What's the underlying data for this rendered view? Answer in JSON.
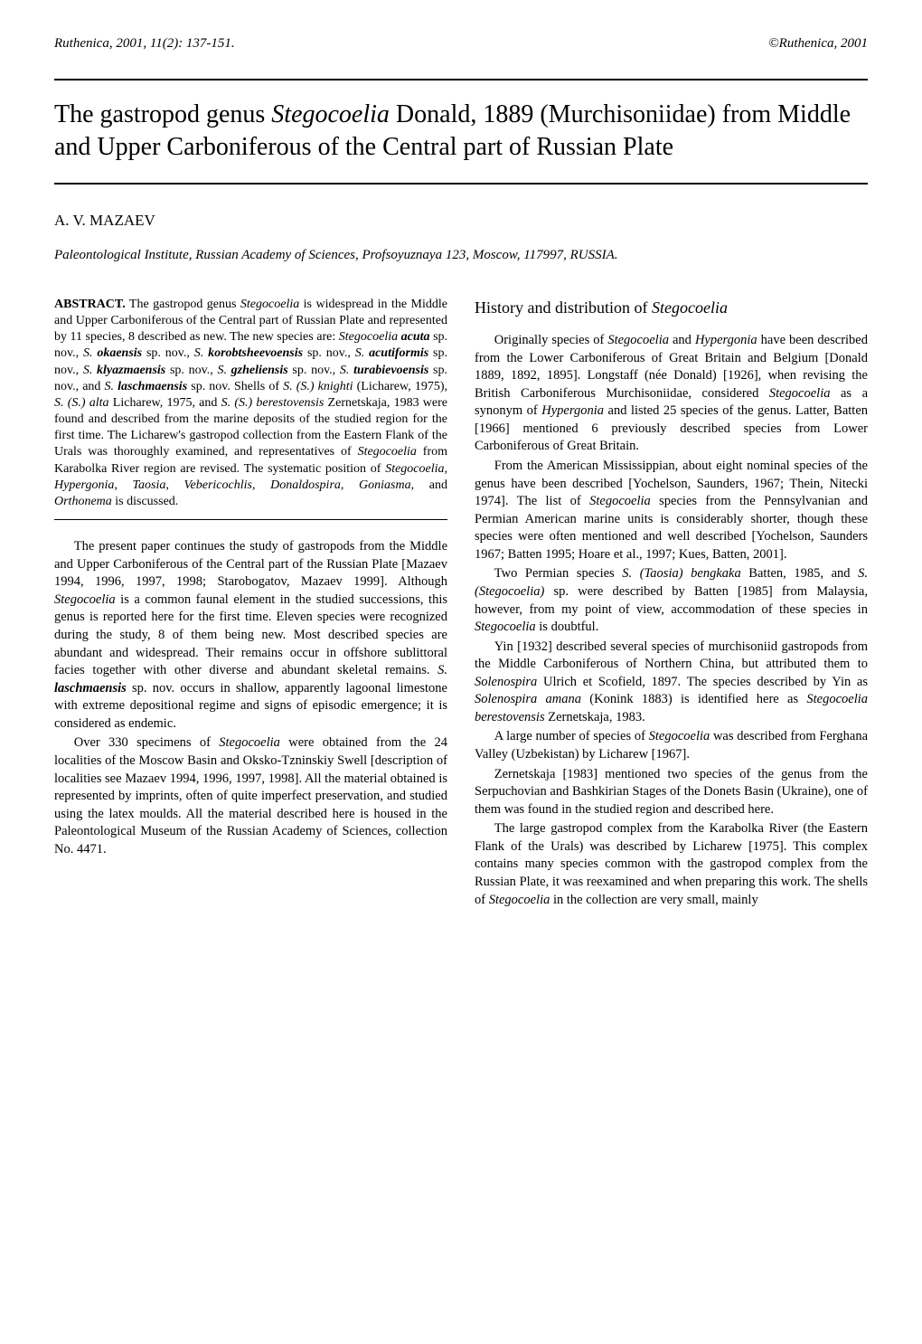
{
  "header": {
    "left": "Ruthenica, 2001, 11(2): 137-151.",
    "right": "©Ruthenica, 2001"
  },
  "title": {
    "pre": "The gastropod genus ",
    "genus": "Stegocoelia",
    "post": " Donald, 1889 (Murchisoniidae) from Middle and Upper Carboniferous of the Central part of Russian Plate"
  },
  "author": "A. V. MAZAEV",
  "affiliation": "Paleontological Institute, Russian Academy of Sciences, Profsoyuznaya 123, Moscow, 117997, RUSSIA.",
  "abstract": {
    "label": "ABSTRACT.",
    "p1a": " The gastropod genus ",
    "p1b_it": "Stegocoelia",
    "p1c": " is widespread in the Middle and Upper Carboniferous of the Central part of Russian Plate and represented by 11 species, 8 described as new. The new species are: ",
    "sp1a": "Stegocoelia ",
    "sp1b": "acuta",
    "sp1c": " sp. nov., ",
    "sp2a": "S. ",
    "sp2b": "okaensis",
    "sp2c": " sp. nov., ",
    "sp3a": "S. ",
    "sp3b": "korobtsheevoensis",
    "sp3c": " sp. nov., ",
    "sp4a": "S. ",
    "sp4b": "acutiformis",
    "sp4c": " sp. nov., ",
    "sp5a": "S. ",
    "sp5b": "klyazmaensis",
    "sp5c": " sp. nov., ",
    "sp6a": "S. ",
    "sp6b": "gzheliensis",
    "sp6c": " sp. nov., ",
    "sp7a": "S. ",
    "sp7b": "turabievoensis",
    "sp7c": " sp. nov., and ",
    "sp8a": "S. ",
    "sp8b": "laschmaensis",
    "sp8c": " sp. nov. Shells of ",
    "sp9": "S. (S.) knighti",
    "sp9c": " (Licharew, 1975), ",
    "sp10": "S. (S.) alta",
    "sp10c": " Licharew, 1975, and ",
    "sp11": "S. (S.) berestovensis",
    "sp11c": " Zernetskaja, 1983 were found and described from the marine deposits of the studied region for the first time. The Licharew's gastropod collection from the Eastern Flank of the Urals was thoroughly examined, and representatives of ",
    "sp12": "Stegocoelia",
    "sp12c": " from Karabolka River region are revised. The systematic position of ",
    "genera": "Stegocoelia, Hypergonia, Taosia, Vebericochlis, Donaldospira, Goniasma,",
    "and": " and ",
    "last": "Orthonema",
    "end": " is discussed."
  },
  "left_body": {
    "p1a": "The present paper continues the study of gastropods from the Middle and Upper Carboniferous of the Central part of the Russian Plate [Mazaev 1994, 1996, 1997, 1998; Starobogatov, Mazaev 1999]. Although ",
    "p1b": "Stegocoelia",
    "p1c": " is a common faunal element in the studied successions, this genus is reported here for the first time. Eleven species were recognized during the study, 8 of them being new. Most described species are abundant and widespread. Their remains occur in offshore sublittoral facies together with other diverse and abundant skeletal remains. ",
    "p1d": "S. ",
    "p1e": "laschmaensis",
    "p1f": " sp. nov. occurs in shallow, apparently lagoonal limestone with extreme depositional regime and signs of episodic emergence; it is considered as endemic.",
    "p2a": "Over 330 specimens of ",
    "p2b": "Stegocoelia",
    "p2c": " were obtained from the 24 localities of the Moscow Basin and Oksko-Tzninskiy Swell [description of localities see Mazaev 1994, 1996, 1997, 1998]. All the material obtained is represented by imprints, often of quite imperfect preservation, and studied using the latex moulds. All the material described here is housed in the Paleontological Museum of the Russian Academy of Sciences, collection No. 4471."
  },
  "section_heading": {
    "pre": "History and distribution of ",
    "genus": "Stegocoelia"
  },
  "right_body": {
    "p1a": "Originally species of ",
    "p1b": "Stegocoelia",
    "p1c": " and ",
    "p1d": "Hypergonia",
    "p1e": " have been described from the Lower Carboniferous of Great Britain and Belgium [Donald 1889, 1892, 1895]. Longstaff (née Donald) [1926], when revising the British Carboniferous Murchisoniidae, considered ",
    "p1f": "Stegocoelia",
    "p1g": " as a synonym of ",
    "p1h": "Hypergonia",
    "p1i": " and listed 25 species of the genus. Latter, Batten [1966] mentioned 6 previously described species from Lower Carboniferous of Great Britain.",
    "p2a": "From the American Mississippian, about eight nominal species of the genus have been described [Yochelson, Saunders, 1967; Thein, Nitecki 1974]. The list of ",
    "p2b": "Stegocoelia",
    "p2c": " species from the Pennsylvanian and Permian American marine units is considerably shorter, though these species were often mentioned and well described [Yochelson, Saunders 1967; Batten 1995; Hoare et al., 1997; Kues, Batten, 2001].",
    "p3a": "Two Permian species ",
    "p3b": "S. (Taosia) bengkaka",
    "p3c": " Batten, 1985, and ",
    "p3d": "S. (Stegocoelia)",
    "p3e": " sp. were described by Batten [1985] from Malaysia, however, from my point of view, accommodation of these species in ",
    "p3f": "Stegocoelia",
    "p3g": " is doubtful.",
    "p4a": "Yin [1932] described several species of murchisoniid gastropods from the Middle Carboniferous of Northern China, but attributed them to ",
    "p4b": "Solenospira",
    "p4c": " Ulrich et Scofield, 1897. The species described by Yin as ",
    "p4d": "Solenospira amana",
    "p4e": " (Konink 1883) is identified here as ",
    "p4f": "Stegocoelia berestovensis",
    "p4g": " Zernetskaja, 1983.",
    "p5a": "A large number of species of ",
    "p5b": "Stegocoelia",
    "p5c": " was described from Ferghana Valley (Uzbekistan) by Licharew [1967].",
    "p6": "Zernetskaja [1983] mentioned two species of the genus from the Serpuchovian and Bashkirian Stages of the Donets Basin (Ukraine), one of them was found in the studied region and described here.",
    "p7a": "The large gastropod complex from the Karabolka River (the Eastern Flank of the Urals) was described by Licharew [1975]. This complex contains many species common with the gastropod complex from the Russian Plate, it was reexamined and when preparing this work. The shells of ",
    "p7b": "Stegocoelia",
    "p7c": " in the collection are very small, mainly"
  }
}
